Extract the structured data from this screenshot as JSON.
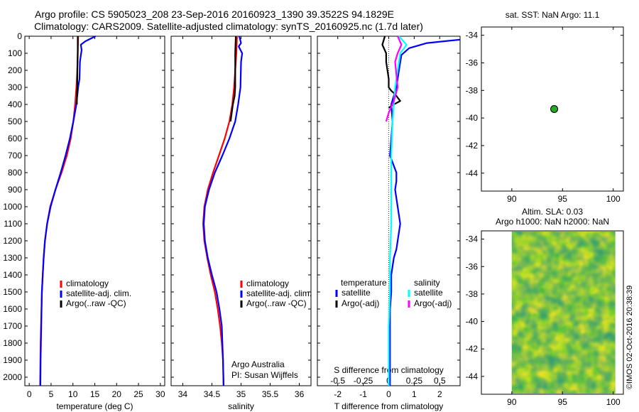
{
  "header": {
    "line1": "Argo profile: CS 5905023_208 23-Sep-2016 20160923_1390 39.3522S 94.1829E",
    "line2": "Climatology: CARS2009. Satellite-adjusted climatology: synTS_20160925.nc (1.7d later)"
  },
  "credit": {
    "org": "Argo Australia",
    "pi": "PI: Susan Wijffels",
    "stamp": "©IMOS 02-Oct-2016 20:38:39"
  },
  "colors": {
    "climatology": "#ff0000",
    "satellite": "#0000ff",
    "argo": "#000000",
    "salinity_satellite": "#00ffff",
    "salinity_argo": "#ff00ff",
    "marker": "#22aa22"
  },
  "legend": {
    "climatology": "climatology",
    "satellite_clim": "satellite-adj. clim.",
    "argo_raw": "Argo(..raw -QC)",
    "temperature_header": "temperature",
    "salinity_header": "salinity",
    "satellite": "satellite",
    "argo_adj": "Argo(-adj)"
  },
  "map_top": {
    "title": "sat. SST: NaN Argo: 11.1",
    "xticks": [
      "90",
      "95",
      "100"
    ],
    "yticks": [
      "-34",
      "-36",
      "-38",
      "-40",
      "-42",
      "-44"
    ],
    "xlim": [
      87,
      101
    ],
    "ylim": [
      -45.3,
      -33.4
    ],
    "marker": {
      "lon": 94.18,
      "lat": -39.35
    }
  },
  "map_bottom": {
    "title1": "Altim. SLA: 0.03",
    "title2": "Argo h1000: NaN h2000: NaN",
    "xticks": [
      "90",
      "95",
      "100"
    ],
    "yticks": [
      "-34",
      "-36",
      "-38",
      "-40",
      "-42",
      "-44"
    ],
    "xlim": [
      87,
      101
    ],
    "ylim": [
      -45.3,
      -33.4
    ],
    "image_lon": [
      90,
      100.2
    ]
  },
  "chart_data": [
    {
      "type": "line",
      "xlabel": "temperature (deg C)",
      "ylabel": "",
      "xlim": [
        -1,
        31
      ],
      "ylim": [
        2050,
        0
      ],
      "xticks": [
        "0",
        "5",
        "10",
        "15",
        "20",
        "25",
        "30"
      ],
      "yticks": [
        "0",
        "100",
        "200",
        "300",
        "400",
        "500",
        "600",
        "700",
        "800",
        "900",
        "1000",
        "1100",
        "1200",
        "1300",
        "1400",
        "1500",
        "1600",
        "1700",
        "1800",
        "1900",
        "2000"
      ],
      "series": [
        {
          "name": "climatology",
          "color": "#ff0000",
          "x": [
            11.2,
            11.1,
            11.0,
            10.8,
            10.5,
            10.1,
            9.5,
            8.6,
            7.4,
            6.0,
            4.8,
            4.1,
            3.6,
            3.3,
            3.1,
            2.9,
            2.8,
            2.7,
            2.6,
            2.55,
            2.5
          ],
          "y": [
            0,
            100,
            200,
            300,
            400,
            500,
            600,
            700,
            800,
            900,
            1000,
            1100,
            1200,
            1300,
            1400,
            1500,
            1600,
            1700,
            1800,
            1900,
            2050
          ]
        },
        {
          "name": "satellite-adj. clim.",
          "color": "#0000ff",
          "x": [
            15.2,
            12.8,
            11.8,
            12.0,
            11.6,
            11.5,
            11.2,
            10.8,
            10.1,
            9.3,
            8.3,
            7.2,
            6.0,
            4.9,
            4.1,
            3.6,
            3.3,
            3.1,
            2.9,
            2.75,
            2.6,
            2.55
          ],
          "y": [
            0,
            30,
            50,
            80,
            150,
            250,
            300,
            400,
            500,
            600,
            700,
            800,
            900,
            1000,
            1100,
            1200,
            1300,
            1400,
            1500,
            1700,
            1900,
            2050
          ]
        },
        {
          "name": "Argo(..raw -QC)",
          "color": "#000000",
          "x": [
            11.1,
            11.1,
            11.0,
            11.0,
            10.9,
            10.9
          ],
          "y": [
            0,
            100,
            200,
            300,
            350,
            400
          ]
        }
      ]
    },
    {
      "type": "line",
      "xlabel": "salinity",
      "ylabel": "",
      "xlim": [
        33.8,
        36.2
      ],
      "ylim": [
        2050,
        0
      ],
      "xticks": [
        "34",
        "34.5",
        "35",
        "35.5",
        "36"
      ],
      "series": [
        {
          "name": "climatology",
          "color": "#ff0000",
          "x": [
            34.93,
            34.92,
            34.9,
            34.88,
            34.85,
            34.8,
            34.72,
            34.62,
            34.52,
            34.43,
            34.37,
            34.35,
            34.37,
            34.42,
            34.48,
            34.55,
            34.6,
            34.64,
            34.67,
            34.69,
            34.7
          ],
          "y": [
            0,
            100,
            200,
            300,
            400,
            500,
            600,
            700,
            800,
            900,
            1000,
            1100,
            1200,
            1300,
            1400,
            1500,
            1600,
            1700,
            1800,
            1900,
            2050
          ]
        },
        {
          "name": "satellite-adj. clim.",
          "color": "#0000ff",
          "x": [
            34.97,
            35.0,
            34.96,
            35.02,
            35.0,
            34.99,
            34.95,
            34.9,
            34.8,
            34.68,
            34.55,
            34.45,
            34.38,
            34.36,
            34.38,
            34.43,
            34.5,
            34.58,
            34.63,
            34.67,
            34.69,
            34.7
          ],
          "y": [
            0,
            40,
            60,
            100,
            150,
            300,
            400,
            500,
            600,
            700,
            800,
            900,
            1000,
            1100,
            1200,
            1300,
            1400,
            1500,
            1600,
            1700,
            1900,
            2050
          ]
        },
        {
          "name": "Argo(..raw -QC)",
          "color": "#000000",
          "x": [
            34.91,
            34.9,
            34.9,
            34.9,
            34.89,
            34.86,
            34.84,
            34.82
          ],
          "y": [
            0,
            100,
            200,
            300,
            350,
            400,
            450,
            500
          ]
        }
      ]
    },
    {
      "type": "line",
      "xlabel": "T difference from climatology",
      "xlabel2": "S difference from climatology",
      "ylabel": "",
      "xlim": [
        -2.8,
        2.8
      ],
      "ylim": [
        2050,
        0
      ],
      "xticks": [
        "-2",
        "-1",
        "0",
        "1",
        "2"
      ],
      "xticks2": [
        "-0.5",
        "-0.25",
        "0",
        "0.25",
        "0.5"
      ],
      "series": [
        {
          "name": "temperature satellite",
          "color": "#0000ff",
          "x": [
            2.8,
            1.5,
            0.8,
            0.5,
            0.4,
            0.3,
            0.1,
            0.15,
            0.1,
            0.05,
            0.3,
            0.3,
            0.25,
            0.3,
            0.35,
            0.4,
            0.45,
            0.4,
            0.35,
            0.3,
            0.2,
            0.1,
            0.1,
            0.05,
            0.05,
            0.05,
            0.05
          ],
          "y": [
            20,
            40,
            70,
            110,
            200,
            300,
            400,
            500,
            600,
            700,
            800,
            850,
            900,
            950,
            1000,
            1050,
            1100,
            1150,
            1200,
            1250,
            1300,
            1400,
            1500,
            1600,
            1700,
            1900,
            2050
          ]
        },
        {
          "name": "temperature Argo(-adj)",
          "color": "#000000",
          "x": [
            -0.15,
            -0.25,
            -0.1,
            -0.1,
            -0.05,
            0.0,
            0.0,
            0.1,
            0.25,
            0.45,
            0.2,
            0.0
          ],
          "y": [
            0,
            50,
            100,
            150,
            200,
            250,
            300,
            320,
            340,
            380,
            400,
            420
          ]
        },
        {
          "name": "salinity satellite",
          "color": "#00ffff",
          "x": [
            0.4,
            0.7,
            0.45,
            0.35,
            0.25,
            0.15,
            0.1,
            0.1,
            0.1,
            0.05,
            0.05,
            0.0,
            0.0,
            0.0
          ],
          "y": [
            0,
            50,
            100,
            200,
            300,
            500,
            700,
            900,
            1100,
            1300,
            1500,
            1700,
            1900,
            2050
          ]
        },
        {
          "name": "salinity Argo(-adj)",
          "color": "#ff00ff",
          "x": [
            0.35,
            0.5,
            0.35,
            0.25,
            0.35,
            0.2,
            0.0,
            -0.1
          ],
          "y": [
            0,
            50,
            100,
            150,
            300,
            380,
            450,
            500
          ]
        }
      ]
    }
  ]
}
